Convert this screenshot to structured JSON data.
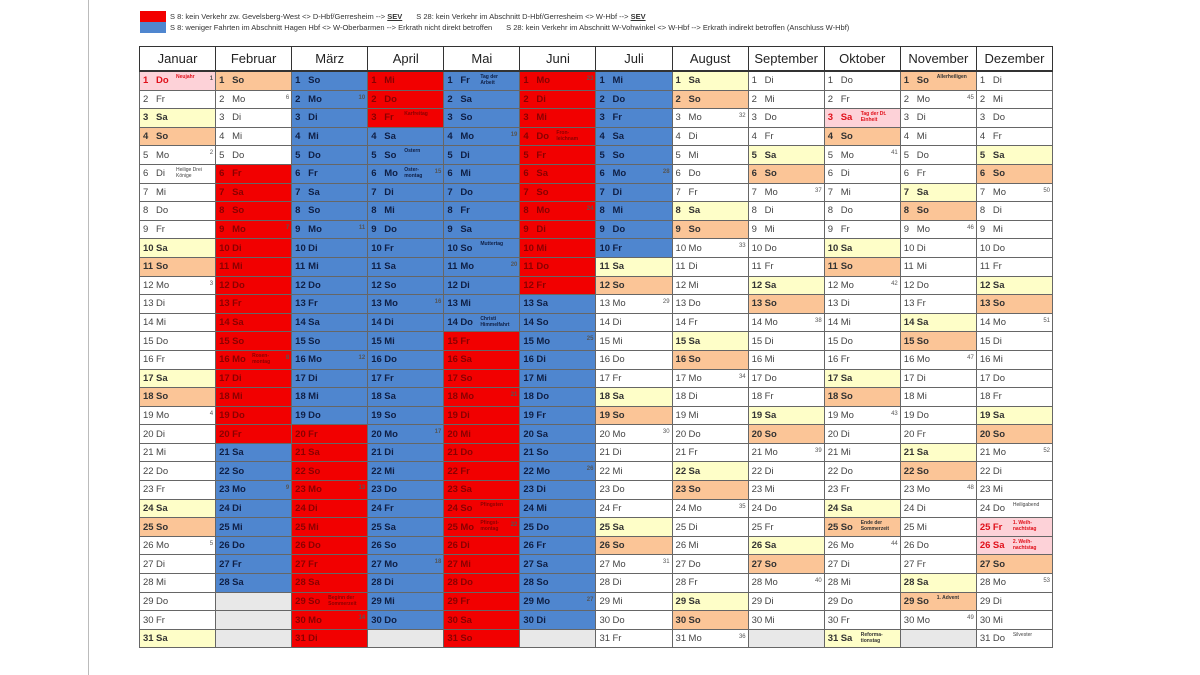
{
  "legend": {
    "colors": {
      "red": "#f20000",
      "blue": "#4f86cf"
    },
    "red_items": [
      {
        "text": "S 8: kein Verkehr zw. Gevelsberg-West <> D-Hbf/Gerresheim -->",
        "strong": "SEV"
      },
      {
        "text": "S 28: kein Verkehr im Abschnitt D-Hbf/Gerresheim <> W-Hbf -->",
        "strong": "SEV"
      }
    ],
    "blue_items": [
      {
        "text": "S 8: weniger Fahrten im Abschnitt Hagen Hbf <> W-Oberbarmen --> Erkrath nicht direkt betroffen"
      },
      {
        "text": "S 28: kein Verkehr im Abschnitt W-Vohwinkel <> W-Hbf --> Erkrath indirekt betroffen (Anschluss W-Hbf)"
      }
    ]
  },
  "weekday_abbr": [
    "Mo",
    "Di",
    "Mi",
    "Do",
    "Fr",
    "Sa",
    "So"
  ],
  "months": [
    {
      "name": "Januar",
      "days": 31,
      "first_weekday": 3,
      "weeks": {
        "1": 1,
        "5": 2,
        "12": 3,
        "19": 4,
        "26": 5
      },
      "red": [],
      "blue": [],
      "notes": {
        "1": "Neujahr",
        "6": "Heilige Drei Könige"
      },
      "holidays": [
        1
      ]
    },
    {
      "name": "Februar",
      "days": 28,
      "first_weekday": 6,
      "weeks": {
        "2": 6,
        "9": 7,
        "16": 8,
        "23": 9
      },
      "red": [
        [
          6,
          20
        ]
      ],
      "blue": [
        [
          21,
          28
        ]
      ],
      "notes": {
        "16": "Rosen-montag"
      },
      "holidays": []
    },
    {
      "name": "März",
      "days": 31,
      "first_weekday": 6,
      "weeks": {
        "2": 10,
        "9": 11,
        "16": 12,
        "23": 13,
        "30": 14
      },
      "red": [
        [
          20,
          31
        ]
      ],
      "blue": [
        [
          1,
          19
        ]
      ],
      "notes": {
        "29": "Beginn der Sommerzeit"
      },
      "holidays": []
    },
    {
      "name": "April",
      "days": 30,
      "first_weekday": 2,
      "weeks": {
        "6": 15,
        "13": 16,
        "20": 17,
        "27": 18
      },
      "red": [
        [
          1,
          3
        ]
      ],
      "blue": [
        [
          4,
          30
        ]
      ],
      "notes": {
        "3": "Karfreitag",
        "5": "Ostern",
        "6": "Oster-montag"
      },
      "holidays": []
    },
    {
      "name": "Mai",
      "days": 31,
      "first_weekday": 4,
      "weeks": {
        "4": 19,
        "11": 20,
        "18": 21,
        "25": 22
      },
      "red": [
        [
          15,
          31
        ]
      ],
      "blue": [
        [
          1,
          14
        ]
      ],
      "notes": {
        "1": "Tag der Arbeit",
        "10": "Muttertag",
        "14": "Christi Himmelfahrt",
        "24": "Pfingsten",
        "25": "Pfingst-montag"
      },
      "holidays": []
    },
    {
      "name": "Juni",
      "days": 30,
      "first_weekday": 0,
      "weeks": {
        "1": 23,
        "8": 24,
        "15": 25,
        "22": 26,
        "29": 27
      },
      "red": [
        [
          1,
          12
        ]
      ],
      "blue": [
        [
          13,
          30
        ]
      ],
      "notes": {
        "4": "Fron-leichnam"
      },
      "holidays": []
    },
    {
      "name": "Juli",
      "days": 31,
      "first_weekday": 2,
      "weeks": {
        "6": 28,
        "13": 29,
        "20": 30,
        "27": 31
      },
      "red": [],
      "blue": [
        [
          1,
          10
        ]
      ],
      "notes": {},
      "holidays": []
    },
    {
      "name": "August",
      "days": 31,
      "first_weekday": 5,
      "weeks": {
        "3": 32,
        "10": 33,
        "17": 34,
        "24": 35,
        "31": 36
      },
      "red": [],
      "blue": [],
      "notes": {},
      "holidays": []
    },
    {
      "name": "September",
      "days": 30,
      "first_weekday": 1,
      "weeks": {
        "7": 37,
        "14": 38,
        "21": 39,
        "28": 40
      },
      "red": [],
      "blue": [],
      "notes": {},
      "holidays": []
    },
    {
      "name": "Oktober",
      "days": 31,
      "first_weekday": 3,
      "weeks": {
        "5": 41,
        "12": 42,
        "19": 43,
        "26": 44
      },
      "red": [],
      "blue": [],
      "notes": {
        "3": "Tag der Dt. Einheit",
        "25": "Ende der Sommerzeit",
        "31": "Reforma-tionstag"
      },
      "holidays": [
        3
      ]
    },
    {
      "name": "November",
      "days": 30,
      "first_weekday": 6,
      "weeks": {
        "2": 45,
        "9": 46,
        "16": 47,
        "23": 48,
        "30": 49
      },
      "red": [],
      "blue": [],
      "notes": {
        "1": "Allerheiligen",
        "29": "1. Advent"
      },
      "holidays": []
    },
    {
      "name": "Dezember",
      "days": 31,
      "first_weekday": 1,
      "weeks": {
        "7": 50,
        "14": 51,
        "21": 52,
        "28": 53
      },
      "red": [],
      "blue": [],
      "notes": {
        "24": "Heiligabend",
        "25": "1. Weih-nachtstag",
        "26": "2. Weih-nachtstag",
        "31": "Silvester"
      },
      "holidays": [
        25,
        26
      ]
    }
  ]
}
